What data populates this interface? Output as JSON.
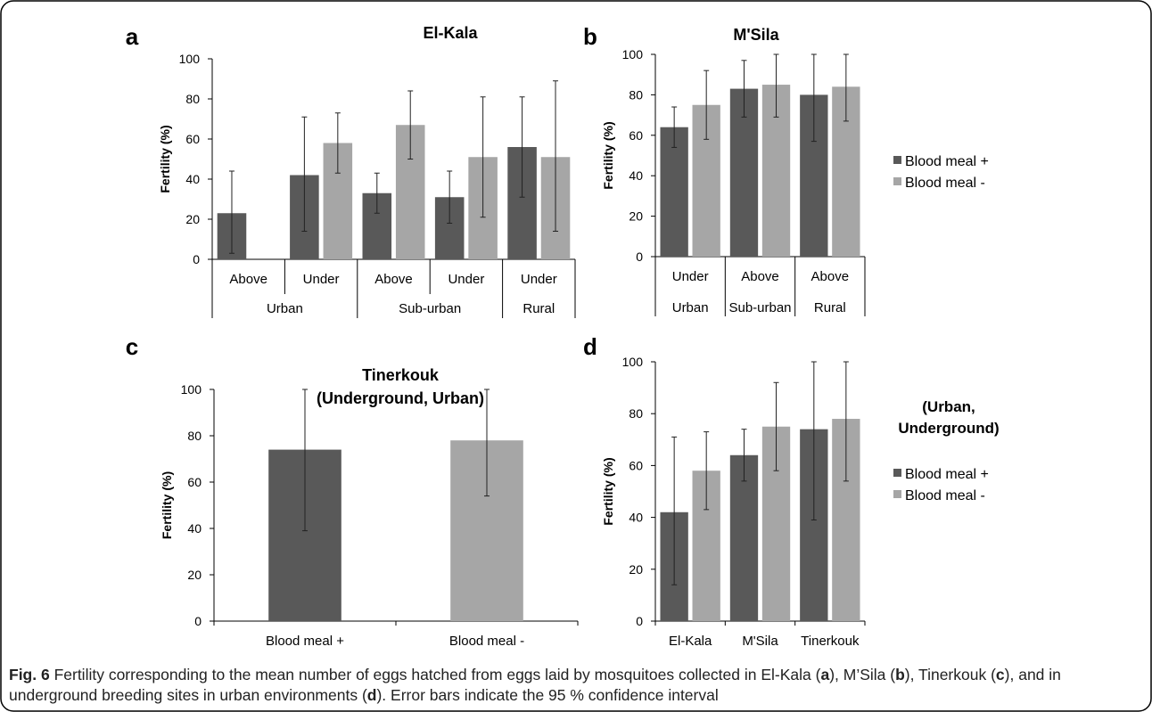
{
  "colors": {
    "blood_meal_plus": "#595959",
    "blood_meal_minus": "#a6a6a6",
    "axis": "#000000",
    "error_bar": "#222222"
  },
  "chart_data": [
    {
      "id": "a",
      "panel_letter": "a",
      "type": "bar",
      "title": "El-Kala",
      "ylabel": "Fertility (%)",
      "ylim": [
        0,
        100
      ],
      "yticks": [
        0,
        20,
        40,
        60,
        80,
        100
      ],
      "categories": [
        "Above",
        "Under",
        "Above",
        "Under",
        "Under"
      ],
      "groups": [
        {
          "label": "Urban",
          "span": 2
        },
        {
          "label": "Sub-urban",
          "span": 2
        },
        {
          "label": "Rural",
          "span": 1
        }
      ],
      "series": [
        {
          "name": "Blood meal +",
          "values": [
            23,
            42,
            33,
            31,
            56
          ],
          "err_low": [
            3,
            14,
            23,
            18,
            31
          ],
          "err_high": [
            44,
            71,
            43,
            44,
            81
          ]
        },
        {
          "name": "Blood meal -",
          "values": [
            null,
            58,
            67,
            51,
            51
          ],
          "err_low": [
            null,
            43,
            50,
            21,
            14
          ],
          "err_high": [
            null,
            73,
            84,
            81,
            89
          ]
        }
      ],
      "legend": false
    },
    {
      "id": "b",
      "panel_letter": "b",
      "type": "bar",
      "title": "M'Sila",
      "ylabel": "Fertility (%)",
      "ylim": [
        0,
        100
      ],
      "yticks": [
        0,
        20,
        40,
        60,
        80,
        100
      ],
      "categories": [
        "Under",
        "Above",
        "Above"
      ],
      "groups": [
        {
          "label": "Urban",
          "span": 1
        },
        {
          "label": "Sub-urban",
          "span": 1
        },
        {
          "label": "Rural",
          "span": 1
        }
      ],
      "series": [
        {
          "name": "Blood meal +",
          "values": [
            64,
            83,
            80
          ],
          "err_low": [
            54,
            69,
            57
          ],
          "err_high": [
            74,
            97,
            100
          ]
        },
        {
          "name": "Blood meal -",
          "values": [
            75,
            85,
            84
          ],
          "err_low": [
            58,
            69,
            67
          ],
          "err_high": [
            92,
            100,
            100
          ]
        }
      ],
      "legend": true,
      "legend_placement": "right",
      "legend_title": ""
    },
    {
      "id": "c",
      "panel_letter": "c",
      "type": "bar",
      "title": "Tinerkouk",
      "subtitle": "(Underground, Urban)",
      "ylabel": "Fertility (%)",
      "ylim": [
        0,
        100
      ],
      "yticks": [
        0,
        20,
        40,
        60,
        80,
        100
      ],
      "categories": [
        "Blood meal +",
        "Blood meal -"
      ],
      "series": [
        {
          "name": "Fertility",
          "values": [
            74,
            78
          ],
          "err_low": [
            39,
            54
          ],
          "err_high": [
            100,
            100
          ],
          "colors": [
            "#595959",
            "#a6a6a6"
          ]
        }
      ],
      "legend": false
    },
    {
      "id": "d",
      "panel_letter": "d",
      "type": "bar",
      "title": "",
      "ylabel": "Fertility (%)",
      "ylim": [
        0,
        100
      ],
      "yticks": [
        0,
        20,
        40,
        60,
        80,
        100
      ],
      "categories": [
        "El-Kala",
        "M'Sila",
        "Tinerkouk"
      ],
      "series": [
        {
          "name": "Blood meal +",
          "values": [
            42,
            64,
            74
          ],
          "err_low": [
            14,
            54,
            39
          ],
          "err_high": [
            71,
            74,
            100
          ]
        },
        {
          "name": "Blood meal -",
          "values": [
            58,
            75,
            78
          ],
          "err_low": [
            43,
            58,
            54
          ],
          "err_high": [
            73,
            92,
            100
          ]
        }
      ],
      "legend": true,
      "legend_placement": "right",
      "legend_title": "(Urban,\nUnderground)"
    }
  ],
  "caption": {
    "fig_label": "Fig. 6",
    "seg1": " Fertility corresponding to the mean number of eggs hatched from eggs laid by mosquitoes collected in El-Kala (",
    "l1": "a",
    "seg2": "), M’Sila (",
    "l2": "b",
    "seg3": "), Tinerkouk (",
    "l3": "c",
    "seg4": "), and in underground breeding sites in urban environments (",
    "l4": "d",
    "seg5": "). Error bars indicate the 95 % confidence interval"
  }
}
